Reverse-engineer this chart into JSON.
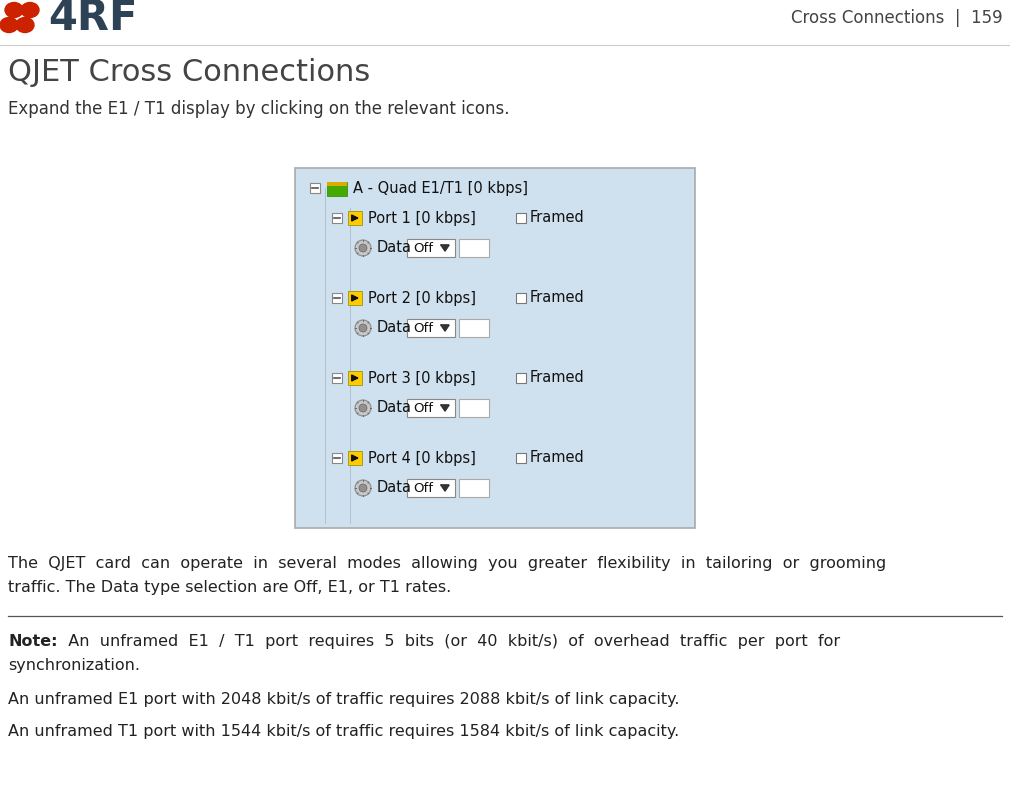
{
  "bg_color": "#ffffff",
  "logo_dots_color": "#cc2200",
  "logo_text_color": "#2d4255",
  "page_header_text": "Cross Connections  |  159",
  "page_header_color": "#444444",
  "page_header_fontsize": 12,
  "title": "QJET Cross Connections",
  "title_color": "#444444",
  "title_fontsize": 22,
  "subtitle": "Expand the E1 / T1 display by clicking on the relevant icons.",
  "subtitle_fontsize": 12,
  "subtitle_color": "#333333",
  "body_line1": "The  QJET  card  can  operate  in  several  modes  allowing  you  greater  flexibility  in  tailoring  or  grooming",
  "body_line2": "traffic. The Data type selection are Off, E1, or T1 rates.",
  "body_fontsize": 11.5,
  "body_text_color": "#222222",
  "note_label": "Note:",
  "note_line1": "  An  unframed  E1  /  T1  port  requires  5  bits  (or  40  kbit/s)  of  overhead  traffic  per  port  for",
  "note_line2": "synchronization.",
  "note_text2": "An unframed E1 port with 2048 kbit/s of traffic requires 2088 kbit/s of link capacity.",
  "note_text3": "An unframed T1 port with 1544 kbit/s of traffic requires 1584 kbit/s of link capacity.",
  "note_fontsize": 11.5,
  "separator_color": "#555555",
  "image_bg_color": "#cfe0ee",
  "image_border_color": "#aaaaaa",
  "panel_label": "A - Quad E1/T1 [0 kbps]",
  "port_labels": [
    "Port 1 [0 kbps]",
    "Port 2 [0 kbps]",
    "Port 3 [0 kbps]",
    "Port 4 [0 kbps]"
  ]
}
